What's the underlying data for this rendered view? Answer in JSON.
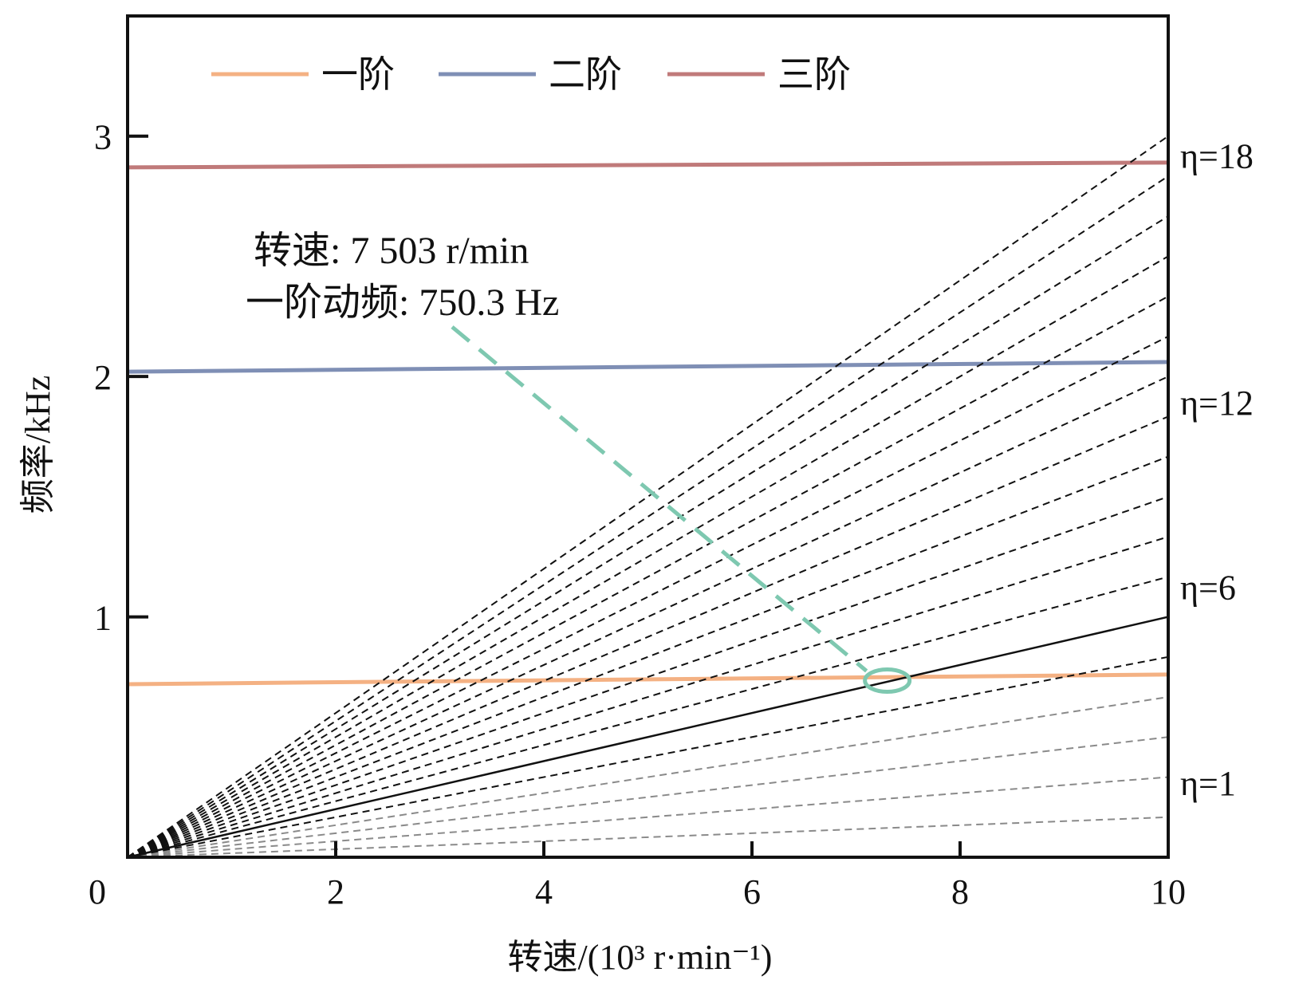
{
  "chart_data": {
    "type": "line",
    "xlabel": "转速/(10³ r·min⁻¹)",
    "ylabel": "频率/kHz",
    "xlim": [
      0,
      10
    ],
    "ylim": [
      0,
      3.5
    ],
    "x_ticks": [
      "0",
      "2",
      "4",
      "6",
      "8",
      "10"
    ],
    "y_ticks": [
      "1",
      "2",
      "3"
    ],
    "y_tick_values": [
      1,
      2,
      3
    ],
    "x_tick_values": [
      0,
      2,
      4,
      6,
      8,
      10
    ],
    "grid": false,
    "legend_position": "top",
    "series": [
      {
        "name": "一阶",
        "color": "#f4b183",
        "x": [
          0,
          10
        ],
        "y": [
          0.72,
          0.76
        ]
      },
      {
        "name": "二阶",
        "color": "#7f8fb5",
        "x": [
          0,
          10
        ],
        "y": [
          2.02,
          2.06
        ]
      },
      {
        "name": "三阶",
        "color": "#c07a7a",
        "x": [
          0,
          10
        ],
        "y": [
          2.87,
          2.89
        ]
      }
    ],
    "order_lines": {
      "orders": [
        1,
        2,
        3,
        4,
        5,
        6,
        7,
        8,
        9,
        10,
        11,
        12,
        13,
        14,
        15,
        16,
        17,
        18
      ],
      "highlight_order": 6,
      "frequency_per_order_at_10k_rpm_kHz": 0.16667,
      "colors": {
        "low": "#8a8a8a",
        "high": "#111111",
        "highlight": "#111111"
      }
    },
    "order_labels": [
      {
        "text": "η=1",
        "order": 1
      },
      {
        "text": "η=6",
        "order": 6
      },
      {
        "text": "η=12",
        "order": 12
      },
      {
        "text": "η=18",
        "order": 18
      }
    ],
    "annotation": {
      "line1": "转速: 7 503 r/min",
      "line2": "一阶动频: 750.3 Hz",
      "point": {
        "x": 7.3,
        "y": 0.735
      },
      "color": "#7ec8b0"
    }
  }
}
